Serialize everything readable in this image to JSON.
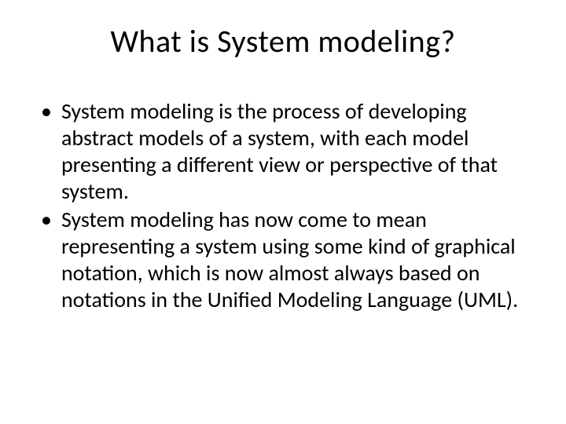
{
  "slide": {
    "title": "What is System modeling?",
    "bullets": [
      "System modeling is the process of developing abstract models of a system, with each model presenting a different view or perspective of that system.",
      "System modeling has now come to mean representing a system using some kind of graphical notation, which is now almost always based on notations in the Unified Modeling Language (UML)."
    ],
    "background_color": "#ffffff",
    "text_color": "#000000",
    "title_fontsize": 40,
    "body_fontsize": 28,
    "bullet_marker": "•"
  }
}
